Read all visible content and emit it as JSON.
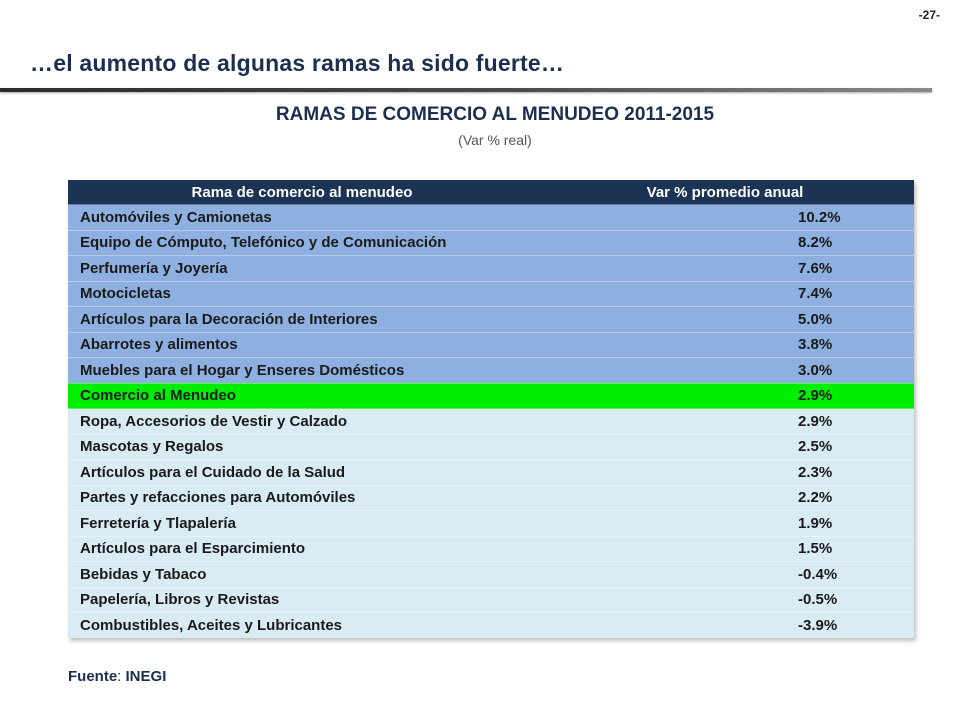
{
  "page_number": "-27-",
  "slide_title": "…el aumento de algunas ramas ha sido fuerte…",
  "table_title": "RAMAS DE COMERCIO AL MENUDEO 2011-2015",
  "table_subtitle": "(Var % real)",
  "table": {
    "header": {
      "name": "Rama de comercio al menudeo",
      "value": "Var % promedio anual"
    },
    "rows": [
      {
        "name": "Automóviles y Camionetas",
        "value": "10.2%",
        "group": "top"
      },
      {
        "name": "Equipo de Cómputo, Telefónico y de Comunicación",
        "value": "8.2%",
        "group": "top"
      },
      {
        "name": "Perfumería y Joyería",
        "value": "7.6%",
        "group": "top"
      },
      {
        "name": "Motocicletas",
        "value": "7.4%",
        "group": "top"
      },
      {
        "name": "Artículos para la Decoración de Interiores",
        "value": "5.0%",
        "group": "top"
      },
      {
        "name": "Abarrotes y alimentos",
        "value": "3.8%",
        "group": "top"
      },
      {
        "name": "Muebles para el Hogar y Enseres Domésticos",
        "value": "3.0%",
        "group": "top"
      },
      {
        "name": "Comercio al Menudeo",
        "value": "2.9%",
        "group": "total"
      },
      {
        "name": "Ropa, Accesorios de Vestir y Calzado",
        "value": "2.9%",
        "group": "bottom"
      },
      {
        "name": "Mascotas y Regalos",
        "value": "2.5%",
        "group": "bottom"
      },
      {
        "name": "Artículos para el Cuidado de la Salud",
        "value": "2.3%",
        "group": "bottom"
      },
      {
        "name": "Partes y refacciones para Automóviles",
        "value": "2.2%",
        "group": "bottom"
      },
      {
        "name": "Ferretería y Tlapalería",
        "value": "1.9%",
        "group": "bottom"
      },
      {
        "name": "Artículos para el Esparcimiento",
        "value": "1.5%",
        "group": "bottom"
      },
      {
        "name": "Bebidas y Tabaco",
        "value": "-0.4%",
        "group": "bottom"
      },
      {
        "name": "Papelería, Libros y Revistas",
        "value": "-0.5%",
        "group": "bottom"
      },
      {
        "name": "Combustibles, Aceites y Lubricantes",
        "value": "-3.9%",
        "group": "bottom"
      }
    ]
  },
  "colors": {
    "header_bg": "#1b3453",
    "top_group_bg": "#8db0e0",
    "total_row_bg": "#00ee00",
    "bottom_group_bg": "#d9ecf3",
    "title_color": "#1c2f4f"
  },
  "source": {
    "label": "Fuente",
    "separator": ":",
    "value": "INEGI"
  }
}
